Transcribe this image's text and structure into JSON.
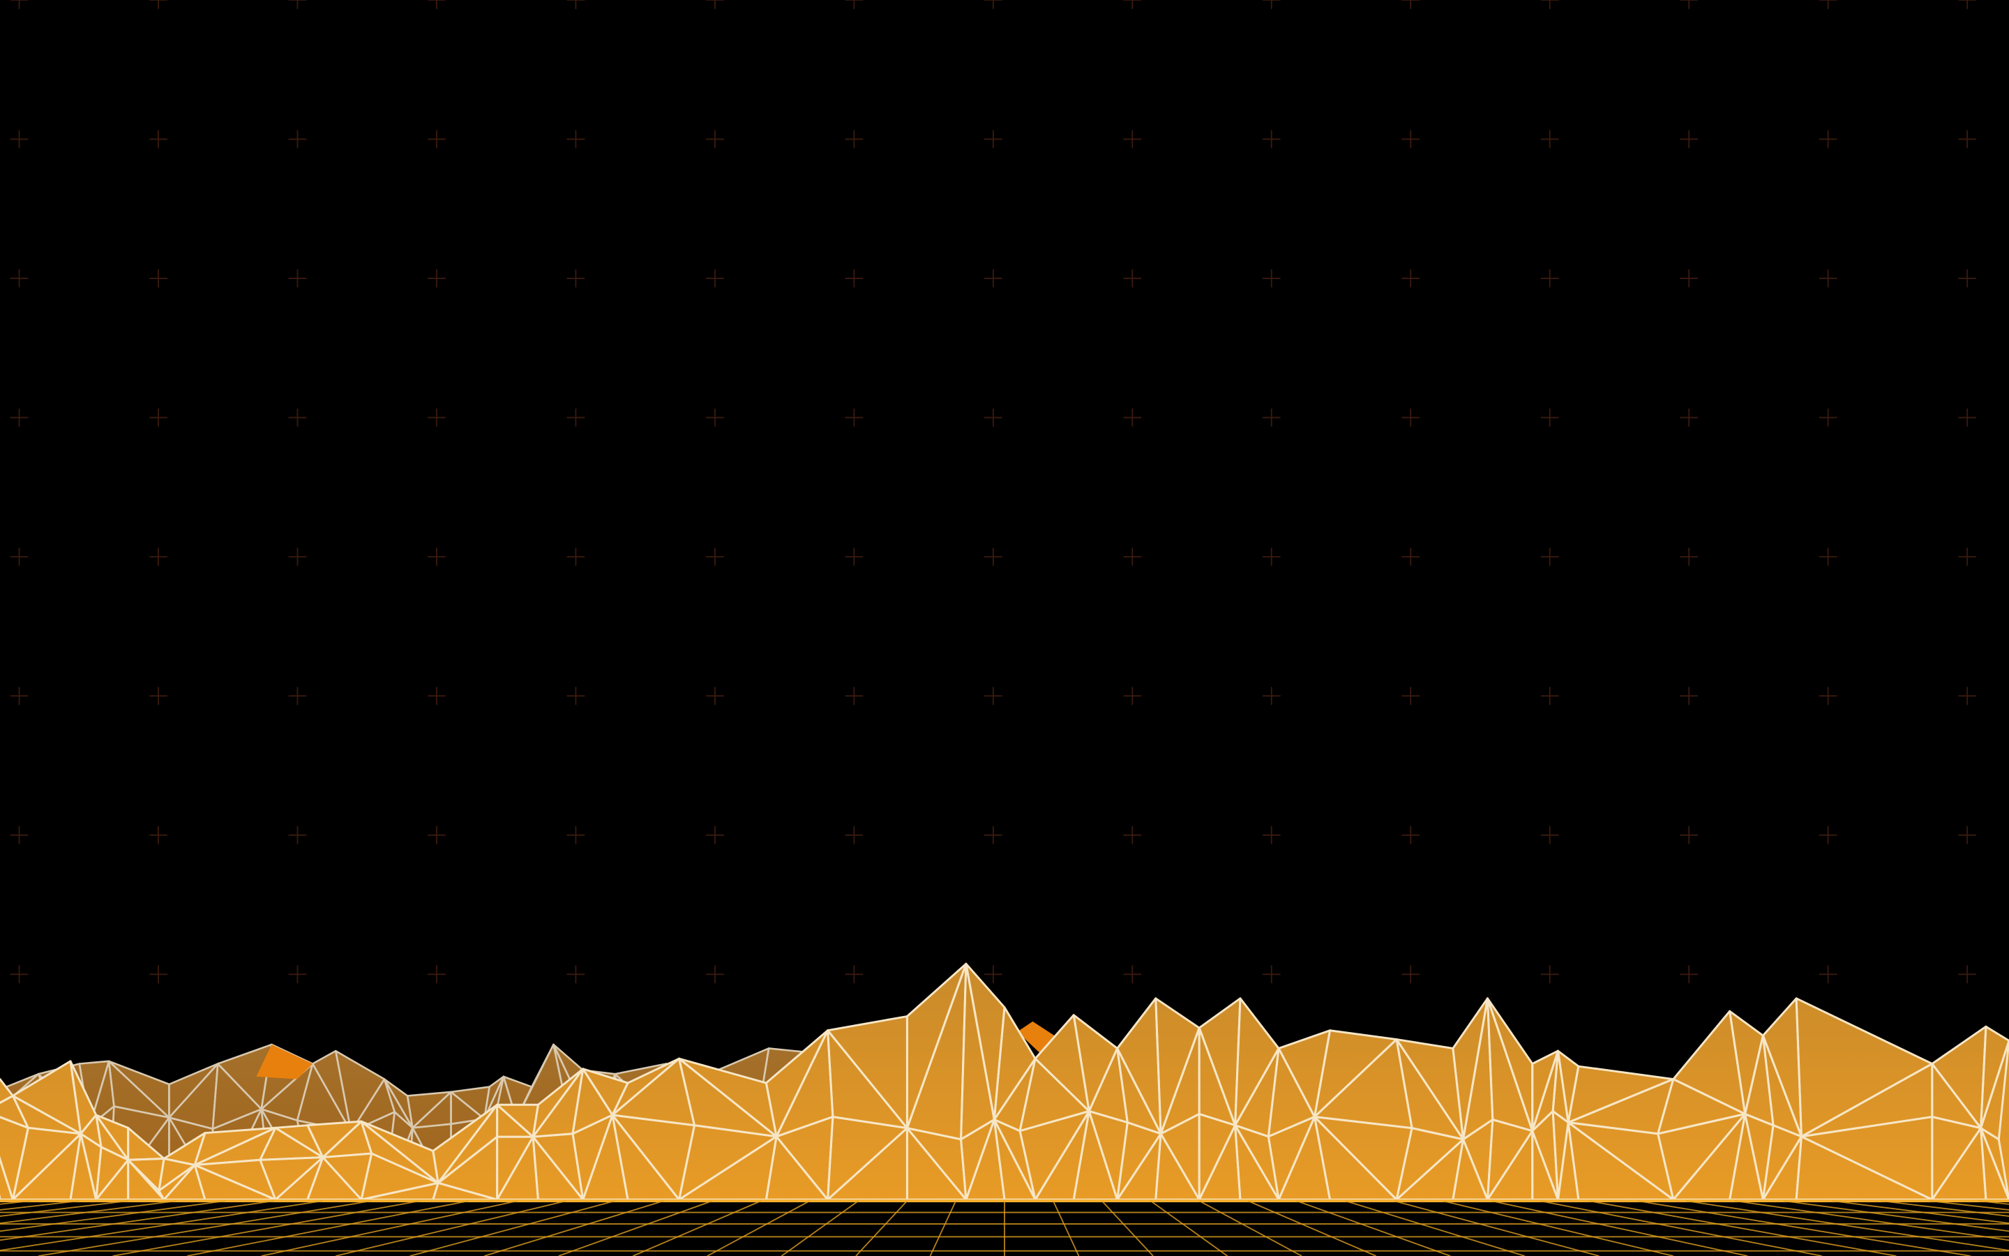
{
  "scene": {
    "subject": "low-poly-wireframe-mountains",
    "colors": {
      "background": "#000000",
      "crosshair": "#3a1a0e",
      "mountain_top_back": "#a4702a",
      "mountain_bottom_back": "#a0641c",
      "mountain_top_front": "#c98a2a",
      "mountain_bottom_front": "#e89b26",
      "peak_accent": "#e8800e",
      "wire_back": "#d8c9b0",
      "wire_front": "#f7e6c6",
      "floor_line": "#e0a020",
      "horizon_line": "#f5b030"
    },
    "elements": [
      "crosshair-grid",
      "back-mountain-range",
      "front-mountain-range",
      "perspective-floor-grid"
    ]
  }
}
